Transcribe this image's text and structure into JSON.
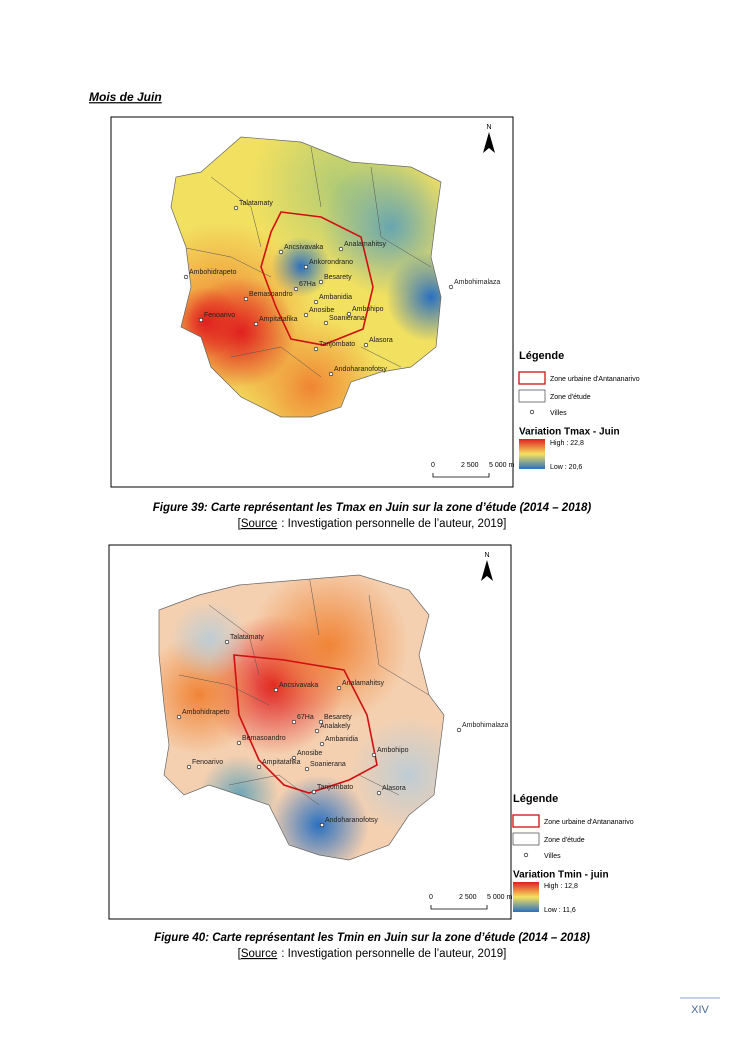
{
  "title": "Mois de Juin",
  "page_number": "XIV",
  "figures": [
    {
      "north": "N",
      "cities": [
        "Talatamaty",
        "Ancsivavaka",
        "Analamahitsy",
        "Ankorondrano",
        "Ambohidrapeto",
        "Ambohimalaza",
        "Besarety",
        "67Ha",
        "Bemasoandro",
        "Ambanidia",
        "Fenoarivo",
        "Ampitatafika",
        "Anosibe",
        "Soanierana",
        "Ambohipo",
        "Tanjombato",
        "Alasora",
        "Andoharanofotsy"
      ],
      "legend": {
        "title": "Légende",
        "items": [
          "Zone urbaine d'Antananarivo",
          "Zone d'étude",
          "Villes"
        ],
        "ramp_title": "Variation Tmax - Juin",
        "high": "High : 22,8",
        "low": "Low : 20,6"
      },
      "scale": [
        "0",
        "2 500",
        "5 000 m"
      ],
      "caption": "Figure 39: Carte représentant les Tmax en Juin sur la zone d’étude (2014 – 2018)",
      "source": {
        "open": "[",
        "label": "Source",
        "text": ": Investigation personnelle de l’auteur, 2019]"
      }
    },
    {
      "north": "N",
      "cities": [
        "Talatamaty",
        "Ancsivavaka",
        "Analamahitsy",
        "Ambohidrapeto",
        "67Ha",
        "Besarety",
        "Analakely",
        "Ambohimalaza",
        "Bemasoandro",
        "Ambanidia",
        "Ambohipo",
        "Anosibe",
        "Fenoarivo",
        "Ampitatafika",
        "Soanierana",
        "Tanjombato",
        "Alasora",
        "Andoharanofotsy"
      ],
      "legend": {
        "title": "Légende",
        "items": [
          "Zone urbaine d'Antananarivo",
          "Zone d'étude",
          "Villes"
        ],
        "ramp_title": "Variation Tmin - juin",
        "high": "High : 12,8",
        "low": "Low : 11,6"
      },
      "scale": [
        "0",
        "2 500",
        "5 000 m"
      ],
      "caption": "Figure 40: Carte représentant les Tmin en Juin sur la zone d’étude (2014 – 2018)",
      "source": {
        "open": "[",
        "label": "Source",
        "text": ": Investigation personnelle de l’auteur, 2019]"
      }
    }
  ]
}
